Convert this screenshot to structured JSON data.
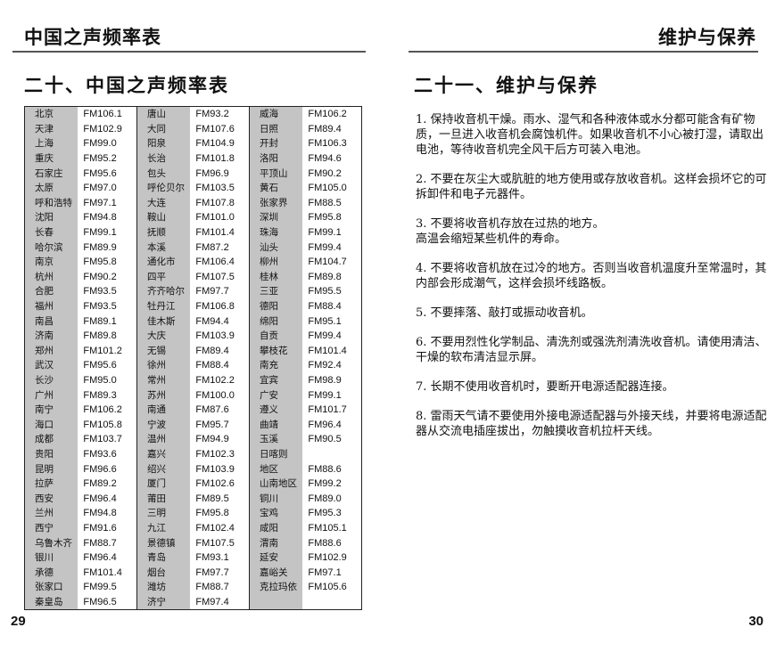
{
  "left_page": {
    "header": "中国之声频率表",
    "section_title": "二十、中国之声频率表",
    "page_number": "29",
    "table": [
      [
        [
          "北京",
          "FM106.1"
        ],
        [
          "唐山",
          "FM93.2"
        ],
        [
          "威海",
          "FM106.2"
        ]
      ],
      [
        [
          "天津",
          "FM102.9"
        ],
        [
          "大同",
          "FM107.6"
        ],
        [
          "日照",
          "FM89.4"
        ]
      ],
      [
        [
          "上海",
          "FM99.0"
        ],
        [
          "阳泉",
          "FM104.9"
        ],
        [
          "开封",
          "FM106.3"
        ]
      ],
      [
        [
          "重庆",
          "FM95.2"
        ],
        [
          "长治",
          "FM101.8"
        ],
        [
          "洛阳",
          "FM94.6"
        ]
      ],
      [
        [
          "石家庄",
          "FM95.6"
        ],
        [
          "包头",
          "FM96.9"
        ],
        [
          "平顶山",
          "FM90.2"
        ]
      ],
      [
        [
          "太原",
          "FM97.0"
        ],
        [
          "呼伦贝尔",
          "FM103.5"
        ],
        [
          "黄石",
          "FM105.0"
        ]
      ],
      [
        [
          "呼和浩特",
          "FM97.1"
        ],
        [
          "大连",
          "FM107.8"
        ],
        [
          "张家界",
          "FM88.5"
        ]
      ],
      [
        [
          "沈阳",
          "FM94.8"
        ],
        [
          "鞍山",
          "FM101.0"
        ],
        [
          "深圳",
          "FM95.8"
        ]
      ],
      [
        [
          "长春",
          "FM99.1"
        ],
        [
          "抚顺",
          "FM101.4"
        ],
        [
          "珠海",
          "FM99.1"
        ]
      ],
      [
        [
          "哈尔滨",
          "FM89.9"
        ],
        [
          "本溪",
          "FM87.2"
        ],
        [
          "汕头",
          "FM99.4"
        ]
      ],
      [
        [
          "南京",
          "FM95.8"
        ],
        [
          "通化市",
          "FM106.4"
        ],
        [
          "柳州",
          "FM104.7"
        ]
      ],
      [
        [
          "杭州",
          "FM90.2"
        ],
        [
          "四平",
          "FM107.5"
        ],
        [
          "桂林",
          "FM89.8"
        ]
      ],
      [
        [
          "合肥",
          "FM93.5"
        ],
        [
          "齐齐哈尔",
          "FM97.7"
        ],
        [
          "三亚",
          "FM95.5"
        ]
      ],
      [
        [
          "福州",
          "FM93.5"
        ],
        [
          "牡丹江",
          "FM106.8"
        ],
        [
          "德阳",
          "FM88.4"
        ]
      ],
      [
        [
          "南昌",
          "FM89.1"
        ],
        [
          "佳木斯",
          "FM94.4"
        ],
        [
          "绵阳",
          "FM95.1"
        ]
      ],
      [
        [
          "济南",
          "FM89.8"
        ],
        [
          "大庆",
          "FM103.9"
        ],
        [
          "自贡",
          "FM99.4"
        ]
      ],
      [
        [
          "郑州",
          "FM101.2"
        ],
        [
          "无锡",
          "FM89.4"
        ],
        [
          "攀枝花",
          "FM101.4"
        ]
      ],
      [
        [
          "武汉",
          "FM95.6"
        ],
        [
          "徐州",
          "FM88.4"
        ],
        [
          "南充",
          "FM92.4"
        ]
      ],
      [
        [
          "长沙",
          "FM95.0"
        ],
        [
          "常州",
          "FM102.2"
        ],
        [
          "宜宾",
          "FM98.9"
        ]
      ],
      [
        [
          "广州",
          "FM89.3"
        ],
        [
          "苏州",
          "FM100.0"
        ],
        [
          "广安",
          "FM99.1"
        ]
      ],
      [
        [
          "南宁",
          "FM106.2"
        ],
        [
          "南通",
          "FM87.6"
        ],
        [
          "遵义",
          "FM101.7"
        ]
      ],
      [
        [
          "海口",
          "FM105.8"
        ],
        [
          "宁波",
          "FM95.7"
        ],
        [
          "曲靖",
          "FM96.4"
        ]
      ],
      [
        [
          "成都",
          "FM103.7"
        ],
        [
          "温州",
          "FM94.9"
        ],
        [
          "玉溪",
          "FM90.5"
        ]
      ],
      [
        [
          "贵阳",
          "FM93.6"
        ],
        [
          "嘉兴",
          "FM102.3"
        ],
        [
          "日喀则",
          ""
        ]
      ],
      [
        [
          "昆明",
          "FM96.6"
        ],
        [
          "绍兴",
          "FM103.9"
        ],
        [
          "地区",
          "FM88.6"
        ]
      ],
      [
        [
          "拉萨",
          "FM89.2"
        ],
        [
          "厦门",
          "FM102.6"
        ],
        [
          "山南地区",
          "FM99.2"
        ]
      ],
      [
        [
          "西安",
          "FM96.4"
        ],
        [
          "莆田",
          "FM89.5"
        ],
        [
          "铜川",
          "FM89.0"
        ]
      ],
      [
        [
          "兰州",
          "FM94.8"
        ],
        [
          "三明",
          "FM95.8"
        ],
        [
          "宝鸡",
          "FM95.3"
        ]
      ],
      [
        [
          "西宁",
          "FM91.6"
        ],
        [
          "九江",
          "FM102.4"
        ],
        [
          "咸阳",
          "FM105.1"
        ]
      ],
      [
        [
          "乌鲁木齐",
          "FM88.7"
        ],
        [
          "景德镇",
          "FM107.5"
        ],
        [
          "渭南",
          "FM88.6"
        ]
      ],
      [
        [
          "银川",
          "FM96.4"
        ],
        [
          "青岛",
          "FM93.1"
        ],
        [
          "延安",
          "FM102.9"
        ]
      ],
      [
        [
          "承德",
          "FM101.4"
        ],
        [
          "烟台",
          "FM97.7"
        ],
        [
          "嘉峪关",
          "FM97.1"
        ]
      ],
      [
        [
          "张家口",
          "FM99.5"
        ],
        [
          "潍坊",
          "FM88.7"
        ],
        [
          "克拉玛依",
          "FM105.6"
        ]
      ],
      [
        [
          "秦皇岛",
          "FM96.5"
        ],
        [
          "济宁",
          "FM97.4"
        ],
        [
          "",
          ""
        ]
      ]
    ]
  },
  "right_page": {
    "header": "维护与保养",
    "section_title": "二十一、维护与保养",
    "page_number": "30",
    "items": [
      "1. 保持收音机干燥。雨水、湿气和各种液体或水分都可能含有矿物质，一旦进入收音机会腐蚀机件。如果收音机不小心被打湿，请取出电池，等待收音机完全风干后方可装入电池。",
      "2. 不要在灰尘大或肮脏的地方使用或存放收音机。这样会损坏它的可拆卸件和电子元器件。",
      "3. 不要将收音机存放在过热的地方。\n高温会缩短某些机件的寿命。",
      "4. 不要将收音机放在过冷的地方。否则当收音机温度升至常温时，其内部会形成潮气，这样会损坏线路板。",
      "5. 不要摔落、敲打或振动收音机。",
      "6. 不要用烈性化学制品、清洗剂或强洗剂清洗收音机。请使用清洁、干燥的软布清洁显示屏。",
      "7. 长期不使用收音机时，要断开电源适配器连接。",
      "8. 雷雨天气请不要使用外接电源适配器与外接天线，并要将电源适配器从交流电插座拔出，勿触摸收音机拉杆天线。"
    ]
  }
}
